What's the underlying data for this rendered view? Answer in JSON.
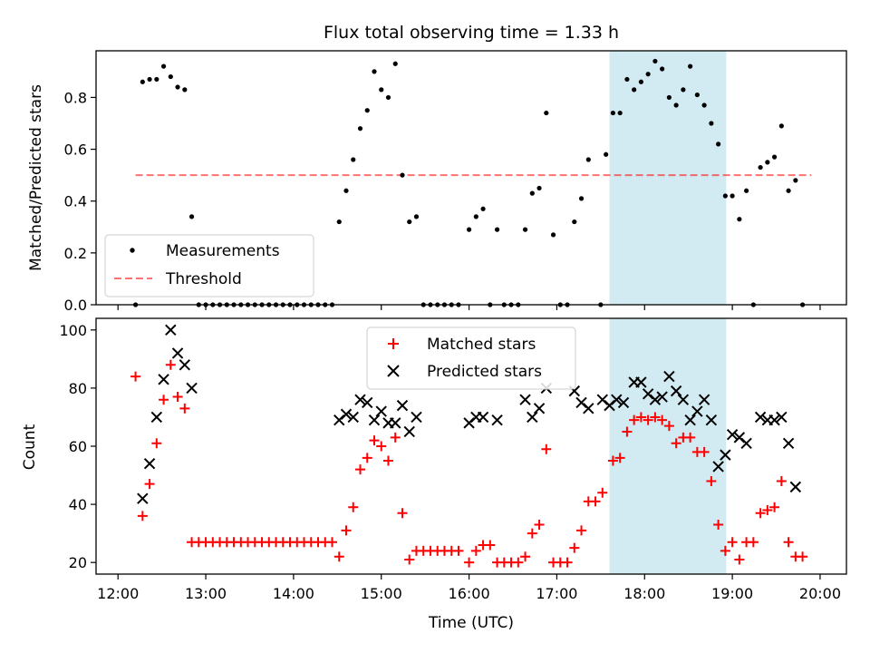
{
  "figure_title": "Flux total observing time = 1.33 h",
  "colors": {
    "span": "#add8e6",
    "threshold": "#ff0000",
    "measurements": "#000000",
    "matched": "#ff0000",
    "predicted": "#000000"
  },
  "chart_data": [
    {
      "type": "scatter",
      "title": "Flux total observing time = 1.33 h",
      "xlabel": "",
      "ylabel": "Matched/Predicted stars",
      "x_unit": "hours UTC",
      "xlim": [
        11.75,
        20.3
      ],
      "ylim": [
        0,
        0.98
      ],
      "x_ticks": [
        12,
        13,
        14,
        15,
        16,
        17,
        18,
        19,
        20
      ],
      "y_ticks": [
        0.0,
        0.2,
        0.4,
        0.6,
        0.8
      ],
      "y_tick_labels": [
        "0.0",
        "0.2",
        "0.4",
        "0.6",
        "0.8"
      ],
      "shaded_span": [
        17.6,
        18.93
      ],
      "legend": {
        "position": "lower left",
        "entries": [
          "Measurements",
          "Threshold"
        ]
      },
      "threshold": {
        "name": "Threshold",
        "value": 0.5,
        "x_range": [
          12.2,
          19.9
        ],
        "style": "dashed"
      },
      "series": [
        {
          "name": "Measurements",
          "points": [
            [
              12.2,
              0.0
            ],
            [
              12.28,
              0.86
            ],
            [
              12.36,
              0.87
            ],
            [
              12.44,
              0.87
            ],
            [
              12.52,
              0.92
            ],
            [
              12.6,
              0.88
            ],
            [
              12.68,
              0.84
            ],
            [
              12.76,
              0.83
            ],
            [
              12.84,
              0.34
            ],
            [
              12.92,
              0.0
            ],
            [
              13.0,
              0.0
            ],
            [
              13.08,
              0.0
            ],
            [
              13.16,
              0.0
            ],
            [
              13.24,
              0.0
            ],
            [
              13.32,
              0.0
            ],
            [
              13.4,
              0.0
            ],
            [
              13.48,
              0.0
            ],
            [
              13.56,
              0.0
            ],
            [
              13.64,
              0.0
            ],
            [
              13.72,
              0.0
            ],
            [
              13.8,
              0.0
            ],
            [
              13.88,
              0.0
            ],
            [
              13.96,
              0.0
            ],
            [
              14.04,
              0.0
            ],
            [
              14.12,
              0.0
            ],
            [
              14.2,
              0.0
            ],
            [
              14.28,
              0.0
            ],
            [
              14.36,
              0.0
            ],
            [
              14.44,
              0.0
            ],
            [
              14.52,
              0.32
            ],
            [
              14.6,
              0.44
            ],
            [
              14.68,
              0.56
            ],
            [
              14.76,
              0.68
            ],
            [
              14.84,
              0.75
            ],
            [
              14.92,
              0.9
            ],
            [
              15.0,
              0.83
            ],
            [
              15.08,
              0.8
            ],
            [
              15.16,
              0.93
            ],
            [
              15.24,
              0.5
            ],
            [
              15.32,
              0.32
            ],
            [
              15.4,
              0.34
            ],
            [
              15.48,
              0.0
            ],
            [
              15.56,
              0.0
            ],
            [
              15.64,
              0.0
            ],
            [
              15.72,
              0.0
            ],
            [
              15.8,
              0.0
            ],
            [
              15.88,
              0.0
            ],
            [
              16.0,
              0.29
            ],
            [
              16.08,
              0.34
            ],
            [
              16.16,
              0.37
            ],
            [
              16.24,
              0.0
            ],
            [
              16.32,
              0.29
            ],
            [
              16.4,
              0.0
            ],
            [
              16.48,
              0.0
            ],
            [
              16.56,
              0.0
            ],
            [
              16.64,
              0.29
            ],
            [
              16.72,
              0.43
            ],
            [
              16.8,
              0.45
            ],
            [
              16.88,
              0.74
            ],
            [
              16.96,
              0.27
            ],
            [
              17.04,
              0.0
            ],
            [
              17.12,
              0.0
            ],
            [
              17.2,
              0.32
            ],
            [
              17.28,
              0.41
            ],
            [
              17.36,
              0.56
            ],
            [
              17.5,
              0.0
            ],
            [
              17.56,
              0.58
            ],
            [
              17.64,
              0.74
            ],
            [
              17.72,
              0.74
            ],
            [
              17.8,
              0.87
            ],
            [
              17.88,
              0.83
            ],
            [
              17.96,
              0.86
            ],
            [
              18.04,
              0.89
            ],
            [
              18.12,
              0.94
            ],
            [
              18.2,
              0.91
            ],
            [
              18.28,
              0.8
            ],
            [
              18.36,
              0.77
            ],
            [
              18.44,
              0.83
            ],
            [
              18.52,
              0.92
            ],
            [
              18.6,
              0.81
            ],
            [
              18.68,
              0.77
            ],
            [
              18.76,
              0.7
            ],
            [
              18.84,
              0.62
            ],
            [
              18.92,
              0.42
            ],
            [
              19.0,
              0.42
            ],
            [
              19.08,
              0.33
            ],
            [
              19.16,
              0.44
            ],
            [
              19.24,
              0.0
            ],
            [
              19.32,
              0.53
            ],
            [
              19.4,
              0.55
            ],
            [
              19.48,
              0.57
            ],
            [
              19.56,
              0.69
            ],
            [
              19.64,
              0.44
            ],
            [
              19.72,
              0.48
            ],
            [
              19.8,
              0.0
            ]
          ]
        }
      ]
    },
    {
      "type": "scatter",
      "title": "",
      "xlabel": "Time (UTC)",
      "ylabel": "Count",
      "x_unit": "hours UTC",
      "xlim": [
        11.75,
        20.3
      ],
      "ylim": [
        16,
        104
      ],
      "x_ticks": [
        12,
        13,
        14,
        15,
        16,
        17,
        18,
        19,
        20
      ],
      "x_tick_labels": [
        "12:00",
        "13:00",
        "14:00",
        "15:00",
        "16:00",
        "17:00",
        "18:00",
        "19:00",
        "20:00"
      ],
      "y_ticks": [
        20,
        40,
        60,
        80,
        100
      ],
      "y_tick_labels": [
        "20",
        "40",
        "60",
        "80",
        "100"
      ],
      "shaded_span": [
        17.6,
        18.93
      ],
      "legend": {
        "position": "upper center",
        "entries": [
          "Matched stars",
          "Predicted stars"
        ]
      },
      "series": [
        {
          "name": "Matched stars",
          "marker": "plus",
          "points": [
            [
              12.2,
              84
            ],
            [
              12.28,
              36
            ],
            [
              12.36,
              47
            ],
            [
              12.44,
              61
            ],
            [
              12.52,
              76
            ],
            [
              12.6,
              88
            ],
            [
              12.68,
              77
            ],
            [
              12.76,
              73
            ],
            [
              12.84,
              27
            ],
            [
              12.92,
              27
            ],
            [
              13.0,
              27
            ],
            [
              13.08,
              27
            ],
            [
              13.16,
              27
            ],
            [
              13.24,
              27
            ],
            [
              13.32,
              27
            ],
            [
              13.4,
              27
            ],
            [
              13.48,
              27
            ],
            [
              13.56,
              27
            ],
            [
              13.64,
              27
            ],
            [
              13.72,
              27
            ],
            [
              13.8,
              27
            ],
            [
              13.88,
              27
            ],
            [
              13.96,
              27
            ],
            [
              14.04,
              27
            ],
            [
              14.12,
              27
            ],
            [
              14.2,
              27
            ],
            [
              14.28,
              27
            ],
            [
              14.36,
              27
            ],
            [
              14.44,
              27
            ],
            [
              14.52,
              22
            ],
            [
              14.6,
              31
            ],
            [
              14.68,
              39
            ],
            [
              14.76,
              52
            ],
            [
              14.84,
              56
            ],
            [
              14.92,
              62
            ],
            [
              15.0,
              60
            ],
            [
              15.08,
              55
            ],
            [
              15.16,
              63
            ],
            [
              15.24,
              37
            ],
            [
              15.32,
              21
            ],
            [
              15.4,
              24
            ],
            [
              15.48,
              24
            ],
            [
              15.56,
              24
            ],
            [
              15.64,
              24
            ],
            [
              15.72,
              24
            ],
            [
              15.8,
              24
            ],
            [
              15.88,
              24
            ],
            [
              16.0,
              20
            ],
            [
              16.08,
              24
            ],
            [
              16.16,
              26
            ],
            [
              16.24,
              26
            ],
            [
              16.32,
              20
            ],
            [
              16.4,
              20
            ],
            [
              16.48,
              20
            ],
            [
              16.56,
              20
            ],
            [
              16.64,
              22
            ],
            [
              16.72,
              30
            ],
            [
              16.8,
              33
            ],
            [
              16.88,
              59
            ],
            [
              16.96,
              20
            ],
            [
              17.04,
              20
            ],
            [
              17.12,
              20
            ],
            [
              17.2,
              25
            ],
            [
              17.28,
              31
            ],
            [
              17.36,
              41
            ],
            [
              17.44,
              41
            ],
            [
              17.52,
              44
            ],
            [
              17.64,
              55
            ],
            [
              17.72,
              56
            ],
            [
              17.8,
              65
            ],
            [
              17.88,
              69
            ],
            [
              17.96,
              70
            ],
            [
              18.04,
              69
            ],
            [
              18.12,
              70
            ],
            [
              18.2,
              69
            ],
            [
              18.28,
              67
            ],
            [
              18.36,
              61
            ],
            [
              18.44,
              63
            ],
            [
              18.52,
              63
            ],
            [
              18.6,
              58
            ],
            [
              18.68,
              58
            ],
            [
              18.76,
              48
            ],
            [
              18.84,
              33
            ],
            [
              18.92,
              24
            ],
            [
              19.0,
              27
            ],
            [
              19.08,
              21
            ],
            [
              19.16,
              27
            ],
            [
              19.24,
              27
            ],
            [
              19.32,
              37
            ],
            [
              19.4,
              38
            ],
            [
              19.48,
              39
            ],
            [
              19.56,
              48
            ],
            [
              19.64,
              27
            ],
            [
              19.72,
              22
            ],
            [
              19.8,
              22
            ]
          ]
        },
        {
          "name": "Predicted stars",
          "marker": "x",
          "points": [
            [
              12.28,
              42
            ],
            [
              12.36,
              54
            ],
            [
              12.44,
              70
            ],
            [
              12.52,
              83
            ],
            [
              12.6,
              100
            ],
            [
              12.68,
              92
            ],
            [
              12.76,
              88
            ],
            [
              12.84,
              80
            ],
            [
              14.52,
              69
            ],
            [
              14.6,
              71
            ],
            [
              14.68,
              70
            ],
            [
              14.76,
              76
            ],
            [
              14.84,
              75
            ],
            [
              14.92,
              69
            ],
            [
              15.0,
              72
            ],
            [
              15.08,
              68
            ],
            [
              15.16,
              68
            ],
            [
              15.24,
              74
            ],
            [
              15.32,
              65
            ],
            [
              15.4,
              70
            ],
            [
              16.0,
              68
            ],
            [
              16.08,
              70
            ],
            [
              16.16,
              70
            ],
            [
              16.32,
              69
            ],
            [
              16.64,
              76
            ],
            [
              16.72,
              70
            ],
            [
              16.8,
              73
            ],
            [
              16.88,
              80
            ],
            [
              17.2,
              79
            ],
            [
              17.28,
              75
            ],
            [
              17.36,
              73
            ],
            [
              17.52,
              76
            ],
            [
              17.6,
              74
            ],
            [
              17.68,
              76
            ],
            [
              17.76,
              75
            ],
            [
              17.88,
              82
            ],
            [
              17.96,
              82
            ],
            [
              18.04,
              78
            ],
            [
              18.12,
              76
            ],
            [
              18.2,
              77
            ],
            [
              18.28,
              84
            ],
            [
              18.36,
              79
            ],
            [
              18.44,
              76
            ],
            [
              18.52,
              69
            ],
            [
              18.6,
              72
            ],
            [
              18.68,
              76
            ],
            [
              18.76,
              69
            ],
            [
              18.84,
              53
            ],
            [
              18.92,
              57
            ],
            [
              19.0,
              64
            ],
            [
              19.08,
              63
            ],
            [
              19.16,
              61
            ],
            [
              19.32,
              70
            ],
            [
              19.4,
              69
            ],
            [
              19.48,
              69
            ],
            [
              19.56,
              70
            ],
            [
              19.64,
              61
            ],
            [
              19.72,
              46
            ]
          ]
        }
      ]
    }
  ]
}
